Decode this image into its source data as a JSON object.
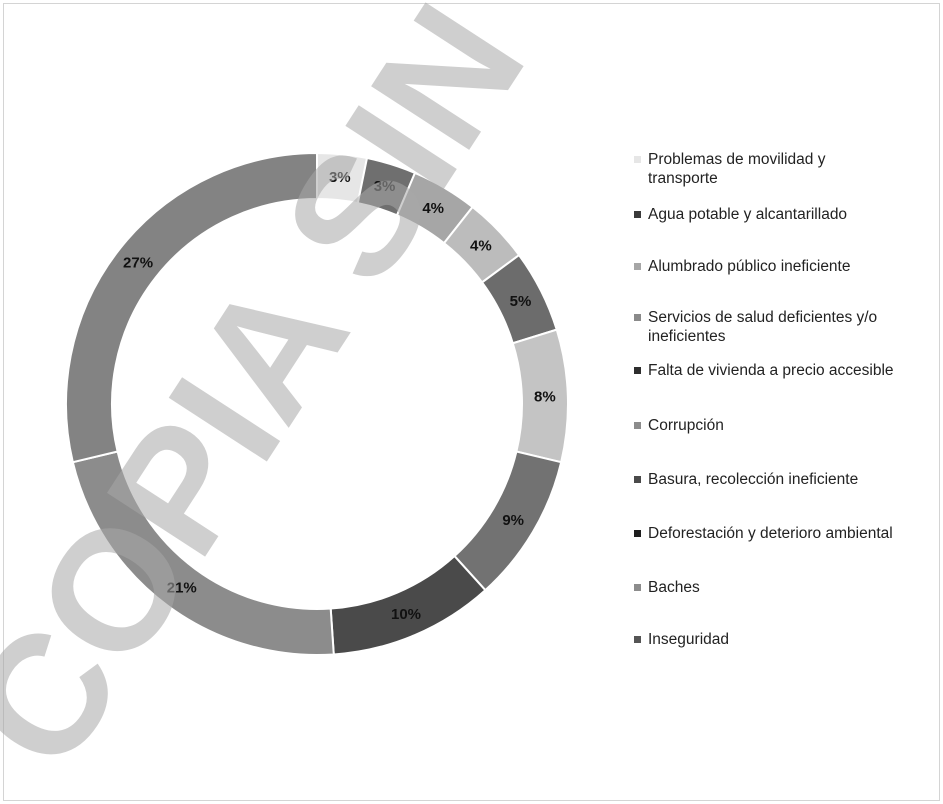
{
  "chart_data": {
    "type": "pie",
    "variant": "donut",
    "title": "",
    "legend_position": "right",
    "slices": [
      {
        "label": "Problemas de movilidad y transporte",
        "value": 3,
        "display": "3%",
        "color": "#e6e6e6"
      },
      {
        "label": "Agua potable y alcantarillado",
        "value": 3,
        "display": "3%",
        "color": "#6f6f6f"
      },
      {
        "label": "Alumbrado público ineficiente",
        "value": 4,
        "display": "4%",
        "color": "#a6a6a6"
      },
      {
        "label": "Servicios de salud deficientes y/o ineficientes",
        "value": 4,
        "display": "4%",
        "color": "#bcbcbc"
      },
      {
        "label": "Falta de vivienda a precio accesible",
        "value": 5,
        "display": "5%",
        "color": "#6c6c6c"
      },
      {
        "label": "Corrupción",
        "value": 8,
        "display": "8%",
        "color": "#c4c4c4"
      },
      {
        "label": "Basura, recolección ineficiente",
        "value": 9,
        "display": "9%",
        "color": "#727272"
      },
      {
        "label": "Deforestación y deterioro ambiental",
        "value": 10,
        "display": "10%",
        "color": "#4a4a4a"
      },
      {
        "label": "Baches",
        "value": 21,
        "display": "21%",
        "color": "#8c8c8c"
      },
      {
        "label": "Inseguridad",
        "value": 27,
        "display": "27%",
        "color": "#838383"
      }
    ]
  },
  "legend": {
    "items": [
      {
        "label": "Problemas de movilidad y\ntransporte",
        "color": "#e6e6e6"
      },
      {
        "label": "Agua potable y alcantarillado",
        "color": "#3a3a3a"
      },
      {
        "label": "Alumbrado público ineficiente",
        "color": "#a6a6a6"
      },
      {
        "label": "Servicios de salud deficientes y/o\nineficientes",
        "color": "#8a8a8a"
      },
      {
        "label": "Falta de vivienda a precio accesible",
        "color": "#2e2e2e"
      },
      {
        "label": "Corrupción",
        "color": "#8c8c8c"
      },
      {
        "label": "Basura, recolección ineficiente",
        "color": "#4a4a4a"
      },
      {
        "label": "Deforestación y deterioro ambiental",
        "color": "#1e1e1e"
      },
      {
        "label": "Baches",
        "color": "#8c8c8c"
      },
      {
        "label": "Inseguridad",
        "color": "#555555"
      }
    ]
  },
  "watermark": {
    "text": "COPIA SIN VALOR"
  }
}
